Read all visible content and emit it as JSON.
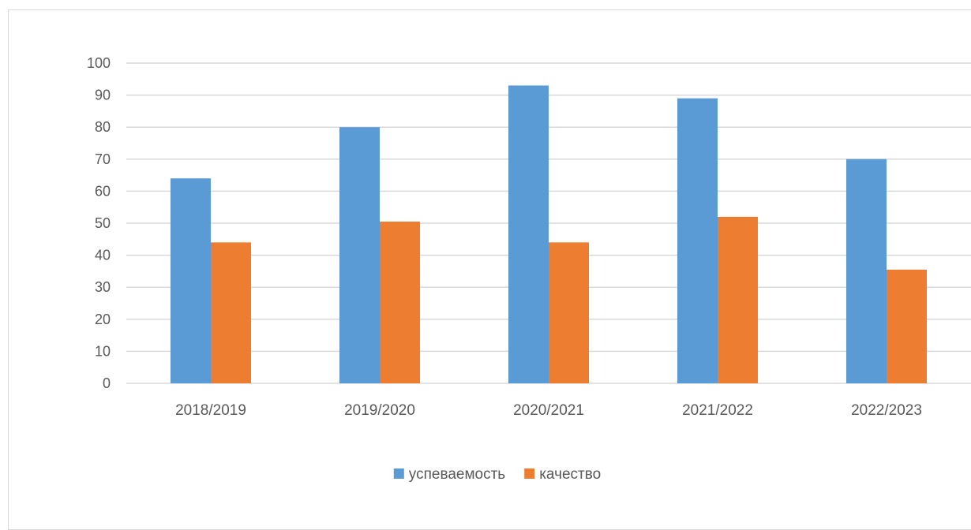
{
  "chart_data": {
    "type": "bar",
    "title": "",
    "xlabel": "",
    "ylabel": "",
    "categories": [
      "2018/2019",
      "2019/2020",
      "2020/2021",
      "2021/2022",
      "2022/2023"
    ],
    "series": [
      {
        "name": "успеваемость",
        "color": "#5b9bd5",
        "values": [
          64,
          80,
          93,
          89,
          70
        ]
      },
      {
        "name": "качество",
        "color": "#ed7d31",
        "values": [
          44,
          50.5,
          44,
          52,
          35.5
        ]
      }
    ],
    "ylim": [
      0,
      100
    ],
    "yticks": [
      0,
      10,
      20,
      30,
      40,
      50,
      60,
      70,
      80,
      90,
      100
    ],
    "grid": true,
    "legend_position": "bottom"
  }
}
